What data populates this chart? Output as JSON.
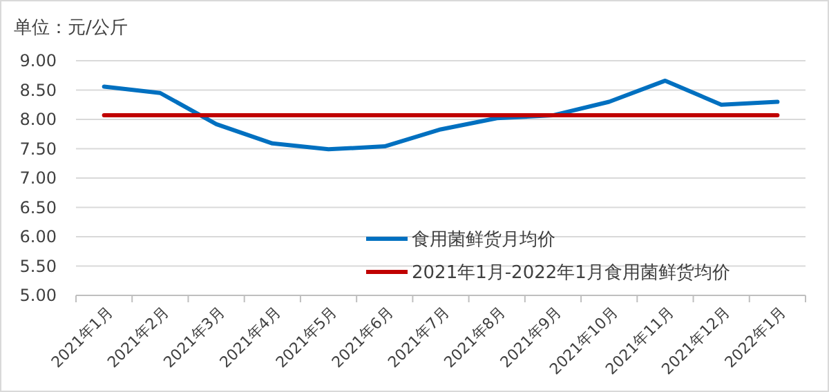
{
  "chart_data": {
    "type": "line",
    "ylabel": "单位：元/公斤",
    "categories": [
      "2021年1月",
      "2021年2月",
      "2021年3月",
      "2021年4月",
      "2021年5月",
      "2021年6月",
      "2021年7月",
      "2021年8月",
      "2021年9月",
      "2021年10月",
      "2021年11月",
      "2021年12月",
      "2022年1月"
    ],
    "series": [
      {
        "name": "食用菌鲜货月均价",
        "color": "#0070c0",
        "values": [
          8.56,
          8.45,
          7.92,
          7.59,
          7.49,
          7.54,
          7.83,
          8.02,
          8.07,
          8.3,
          8.66,
          8.25,
          8.3
        ]
      },
      {
        "name": "2021年1月-2022年1月食用菌鲜货均价",
        "color": "#c00000",
        "values": [
          8.07,
          8.07,
          8.07,
          8.07,
          8.07,
          8.07,
          8.07,
          8.07,
          8.07,
          8.07,
          8.07,
          8.07,
          8.07
        ]
      }
    ],
    "ylim": [
      5,
      9
    ],
    "yticks": [
      {
        "value": 5,
        "label": "5.00"
      },
      {
        "value": 5.5,
        "label": "5.50"
      },
      {
        "value": 6,
        "label": "6.00"
      },
      {
        "value": 6.5,
        "label": "6.50"
      },
      {
        "value": 7,
        "label": "7.00"
      },
      {
        "value": 7.5,
        "label": "7.50"
      },
      {
        "value": 8,
        "label": "8.00"
      },
      {
        "value": 8.5,
        "label": "8.50"
      },
      {
        "value": 9,
        "label": "9.00"
      }
    ],
    "grid": "y",
    "legend": "bottom right",
    "marker": "none",
    "line_style": "solid"
  }
}
